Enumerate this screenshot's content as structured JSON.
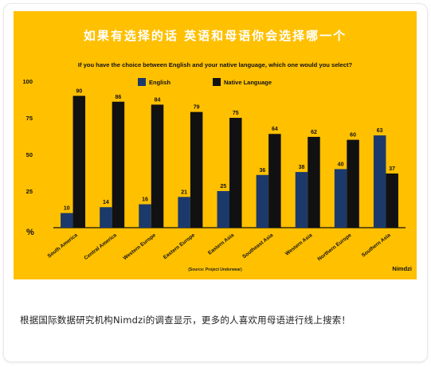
{
  "caption": "根据国际数据研究机构Nimdzi的调查显示，更多的人喜欢用母语进行线上搜索！",
  "chart_data": {
    "type": "bar",
    "title": "如果有选择的话 英语和母语你会选择哪一个",
    "subtitle": "If you have the choice between English and your native language, which one would you select?",
    "categories": [
      "South America",
      "Central America",
      "Western Europe",
      "Eastern Europe",
      "Eastern Asia",
      "Southeast Asia",
      "Western Asia",
      "Northern Europe",
      "Southern Asia"
    ],
    "series": [
      {
        "name": "English",
        "values": [
          10,
          14,
          16,
          21,
          25,
          36,
          38,
          40,
          63
        ],
        "color": "#1B3A6B"
      },
      {
        "name": "Native Language",
        "values": [
          90,
          86,
          84,
          79,
          75,
          64,
          62,
          60,
          37
        ],
        "color": "#111111"
      }
    ],
    "yticks": [
      100,
      75,
      50,
      25
    ],
    "ylabel": "%",
    "ylim": [
      0,
      100
    ],
    "legend_position": "top",
    "source": "(Source: Project Underwear)",
    "brand": "Nimdzi",
    "background_color": "#FFC000"
  }
}
